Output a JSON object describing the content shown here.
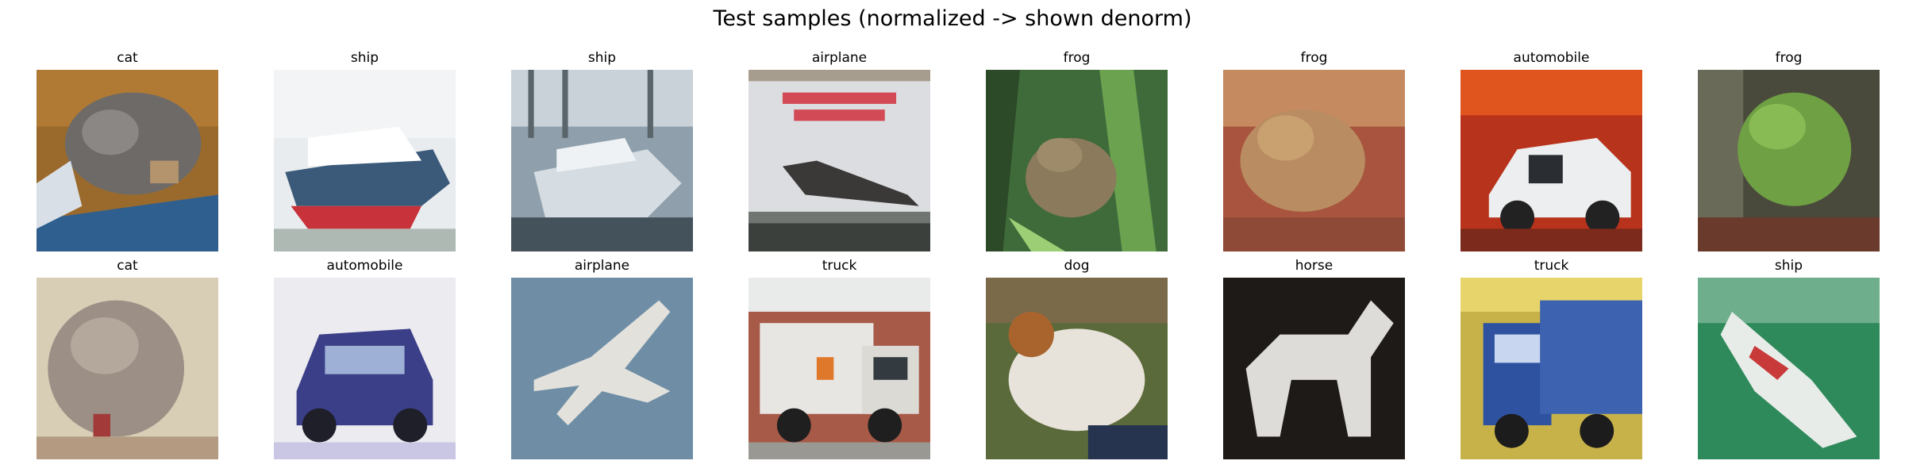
{
  "title": "Test samples (normalized -> shown denorm)",
  "samples": [
    {
      "label": "cat",
      "image": "tabby cat curled up on blue fabric, brown background"
    },
    {
      "label": "ship",
      "image": "white ferry with red hull on pale water"
    },
    {
      "label": "ship",
      "image": "white motor boat in harbour"
    },
    {
      "label": "airplane",
      "image": "Concorde jet below red lettering"
    },
    {
      "label": "frog",
      "image": "brown frog in green grass"
    },
    {
      "label": "frog",
      "image": "brown toad on reddish ground"
    },
    {
      "label": "automobile",
      "image": "white car with open doors, red background"
    },
    {
      "label": "frog",
      "image": "green frog on dark background"
    },
    {
      "label": "cat",
      "image": "grey cat close-up on beige"
    },
    {
      "label": "automobile",
      "image": "blue car on white background"
    },
    {
      "label": "airplane",
      "image": "white fighter jet against blue sky"
    },
    {
      "label": "truck",
      "image": "white truck in front of brick building"
    },
    {
      "label": "dog",
      "image": "brown and white dog on green"
    },
    {
      "label": "horse",
      "image": "white horse on dark background"
    },
    {
      "label": "truck",
      "image": "blue truck under yellow sky"
    },
    {
      "label": "ship",
      "image": "ship on green water"
    }
  ],
  "colors": {
    "background": "#ffffff",
    "text": "#000000"
  }
}
